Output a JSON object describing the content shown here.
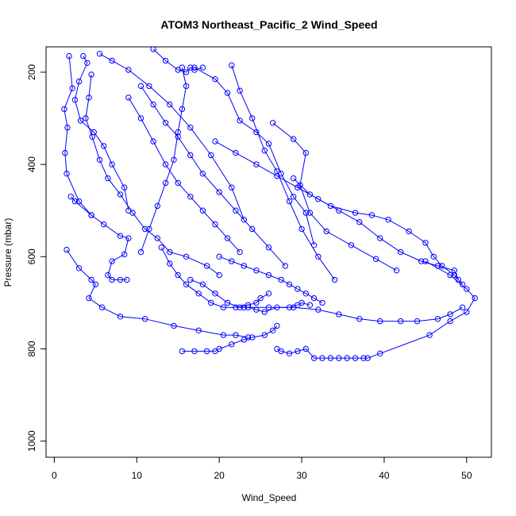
{
  "chart_data": {
    "type": "scatter",
    "title": "ATOM3 Northeast_Pacific_2 Wind_Speed",
    "xlabel": "Wind_Speed",
    "ylabel": "Pressure (mbar)",
    "xlim": [
      -1,
      53
    ],
    "ylim": [
      1035,
      145
    ],
    "y_reversed": true,
    "x_ticks": [
      0,
      10,
      20,
      30,
      40,
      50
    ],
    "y_ticks": [
      200,
      400,
      600,
      800,
      1000
    ],
    "grid": false,
    "legend": "none",
    "color": "#0000ff",
    "marker": "open-circle",
    "connected": true,
    "series": [
      {
        "x": [
          1.8,
          2.2,
          1.2,
          1.6,
          1.3,
          1.5,
          3.0,
          4.5
        ],
        "y": [
          165,
          235,
          280,
          320,
          375,
          420,
          480,
          510
        ]
      },
      {
        "x": [
          3.5,
          4.0,
          3.0,
          2.5,
          3.2,
          4.8,
          6.0,
          7.0,
          8.5,
          9.0
        ],
        "y": [
          165,
          180,
          220,
          260,
          305,
          330,
          360,
          400,
          450,
          500
        ]
      },
      {
        "x": [
          4.5,
          4.2,
          3.8,
          4.6,
          5.5,
          6.5,
          8.0,
          9.5,
          11.0,
          12.5,
          14.0,
          16.0,
          18.5,
          20.0
        ],
        "y": [
          205,
          255,
          300,
          340,
          390,
          430,
          465,
          505,
          540,
          560,
          590,
          600,
          620,
          640
        ]
      },
      {
        "x": [
          10.5,
          12.0,
          13.5,
          15.0,
          16.5,
          18.0,
          20.0,
          22.0,
          24.0,
          26.0,
          28.0
        ],
        "y": [
          230,
          270,
          310,
          340,
          380,
          420,
          460,
          500,
          540,
          580,
          620
        ]
      },
      {
        "x": [
          9.0,
          10.5,
          12.0,
          13.5,
          15.0,
          16.5,
          18.0,
          19.5,
          21.0,
          22.5
        ],
        "y": [
          255,
          300,
          350,
          400,
          440,
          470,
          500,
          530,
          560,
          590
        ]
      },
      {
        "x": [
          21.5,
          22.5,
          24.0,
          25.5,
          27.0,
          28.5,
          30.0,
          32.0,
          34.0
        ],
        "y": [
          185,
          240,
          300,
          370,
          415,
          480,
          540,
          600,
          650
        ]
      },
      {
        "x": [
          17.0,
          19.5,
          21.0,
          22.5,
          24.5,
          26.0,
          27.5,
          29.0,
          30.5,
          31.5
        ],
        "y": [
          190,
          215,
          245,
          305,
          330,
          355,
          420,
          470,
          505,
          575
        ]
      },
      {
        "x": [
          26.5,
          29.0,
          30.5,
          29.8,
          31.0,
          33.0,
          36.0,
          39.0,
          41.5
        ],
        "y": [
          310,
          345,
          375,
          445,
          505,
          545,
          575,
          605,
          630
        ]
      },
      {
        "x": [
          2.0,
          2.5,
          4.5,
          6.0,
          8.0,
          9.0,
          8.5,
          7.0,
          6.5,
          7.0,
          8.0,
          8.8
        ],
        "y": [
          470,
          480,
          510,
          530,
          555,
          560,
          595,
          610,
          640,
          650,
          650,
          650
        ]
      },
      {
        "x": [
          1.5,
          3.0,
          4.5,
          5.0,
          4.2,
          5.8,
          8.0,
          11.0,
          14.5,
          17.5,
          20.5,
          22.0,
          23.5
        ],
        "y": [
          585,
          625,
          650,
          660,
          690,
          710,
          730,
          735,
          750,
          760,
          770,
          770,
          775
        ]
      },
      {
        "x": [
          13.0,
          14.0,
          15.0,
          16.0,
          17.5,
          19.0,
          20.5,
          22.0,
          23.5,
          24.5,
          25.0,
          26.0
        ],
        "y": [
          580,
          615,
          640,
          660,
          680,
          700,
          710,
          710,
          705,
          700,
          690,
          680
        ]
      },
      {
        "x": [
          16.5,
          18.0,
          19.5,
          21.0,
          22.5,
          23.5,
          24.5,
          25.5,
          27.0,
          28.5,
          29.5,
          30.0,
          31.0
        ],
        "y": [
          650,
          660,
          680,
          700,
          710,
          710,
          715,
          720,
          710,
          710,
          705,
          700,
          705
        ]
      },
      {
        "x": [
          20.0,
          21.5,
          23.0,
          24.5,
          26.0,
          27.5,
          28.5,
          29.5,
          30.5,
          31.5,
          32.5
        ],
        "y": [
          600,
          610,
          620,
          630,
          640,
          650,
          660,
          670,
          680,
          690,
          700
        ]
      },
      {
        "x": [
          15.5,
          17.0,
          18.5,
          19.5,
          20.0,
          21.5,
          23.0,
          24.0,
          25.5,
          26.5,
          27.0
        ],
        "y": [
          805,
          805,
          805,
          805,
          800,
          790,
          780,
          775,
          770,
          760,
          750
        ]
      },
      {
        "x": [
          27.0,
          27.5,
          28.5,
          29.5,
          30.5,
          31.5,
          32.5,
          33.5,
          34.5,
          35.5,
          36.5,
          37.5,
          38.0,
          39.5,
          45.5,
          48.0,
          50.0,
          51.0,
          50.0,
          48.0,
          45.0
        ],
        "y": [
          800,
          805,
          810,
          805,
          800,
          820,
          820,
          820,
          820,
          820,
          820,
          820,
          820,
          810,
          770,
          740,
          720,
          690,
          670,
          640,
          610
        ]
      },
      {
        "x": [
          29.0,
          31.0,
          33.5,
          36.5,
          38.5,
          40.5,
          43.0,
          45.0,
          46.0,
          47.0,
          48.5,
          49.5
        ],
        "y": [
          430,
          465,
          490,
          505,
          510,
          520,
          545,
          570,
          600,
          620,
          640,
          660
        ]
      },
      {
        "x": [
          19.5,
          22.0,
          24.5,
          27.0,
          29.5,
          32.0,
          34.5,
          37.0,
          39.5,
          42.0,
          44.5,
          46.5,
          48.5,
          49.0
        ],
        "y": [
          350,
          375,
          400,
          425,
          450,
          475,
          500,
          525,
          560,
          590,
          610,
          620,
          630,
          650
        ]
      },
      {
        "x": [
          23.0,
          26.0,
          29.0,
          32.0,
          34.5,
          37.0,
          39.5,
          42.0,
          44.0,
          46.5,
          48.0,
          49.5
        ],
        "y": [
          710,
          710,
          710,
          715,
          725,
          735,
          740,
          740,
          740,
          735,
          725,
          710
        ]
      },
      {
        "x": [
          5.5,
          7.0,
          9.0,
          11.5,
          14.0,
          16.5,
          19.0,
          21.5,
          23.0
        ],
        "y": [
          160,
          175,
          195,
          230,
          270,
          320,
          380,
          450,
          520
        ]
      },
      {
        "x": [
          12.0,
          13.5,
          15.0,
          16.0,
          16.5,
          17.0,
          18.0
        ],
        "y": [
          150,
          175,
          195,
          200,
          190,
          195,
          190
        ]
      },
      {
        "x": [
          15.5,
          16.0,
          15.5,
          15.0,
          14.5,
          13.5,
          12.5,
          11.5,
          10.5
        ],
        "y": [
          190,
          230,
          280,
          330,
          390,
          440,
          490,
          540,
          590
        ]
      }
    ]
  }
}
